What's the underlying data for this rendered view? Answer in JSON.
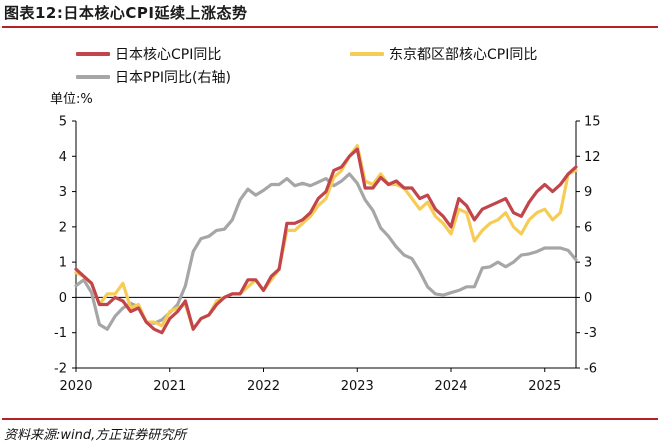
{
  "title": "图表12:日本核心CPI延续上涨态势",
  "source": "资料来源:wind,方正证券研究所",
  "unit_label": "单位:%",
  "colors": {
    "core_cpi": "#c1454a",
    "tokyo_cpi": "#f7cc55",
    "ppi": "#a6a6a6",
    "rule": "#b32025"
  },
  "chart_data": {
    "type": "line",
    "x_range": [
      "2020-01",
      "2025-05"
    ],
    "x_tick_labels": [
      "2020",
      "2021",
      "2022",
      "2023",
      "2024",
      "2025"
    ],
    "y_left_ticks": [
      -2,
      -1,
      0,
      1,
      2,
      3,
      4,
      5
    ],
    "y_right_ticks": [
      -6,
      -3,
      0,
      3,
      6,
      9,
      12,
      15
    ],
    "ylim_left": [
      -2,
      5
    ],
    "ylim_right": [
      -6,
      15
    ],
    "grid": false,
    "legend_position": "top",
    "series": [
      {
        "name": "日本核心CPI同比",
        "axis": "left",
        "color": "#c1454a",
        "x": [
          "2020-01",
          "2020-02",
          "2020-03",
          "2020-04",
          "2020-05",
          "2020-06",
          "2020-07",
          "2020-08",
          "2020-09",
          "2020-10",
          "2020-11",
          "2020-12",
          "2021-01",
          "2021-02",
          "2021-03",
          "2021-04",
          "2021-05",
          "2021-06",
          "2021-07",
          "2021-08",
          "2021-09",
          "2021-10",
          "2021-11",
          "2021-12",
          "2022-01",
          "2022-02",
          "2022-03",
          "2022-04",
          "2022-05",
          "2022-06",
          "2022-07",
          "2022-08",
          "2022-09",
          "2022-10",
          "2022-11",
          "2022-12",
          "2023-01",
          "2023-02",
          "2023-03",
          "2023-04",
          "2023-05",
          "2023-06",
          "2023-07",
          "2023-08",
          "2023-09",
          "2023-10",
          "2023-11",
          "2023-12",
          "2024-01",
          "2024-02",
          "2024-03",
          "2024-04",
          "2024-05",
          "2024-06",
          "2024-07",
          "2024-08",
          "2024-09",
          "2024-10",
          "2024-11",
          "2024-12",
          "2025-01",
          "2025-02",
          "2025-03",
          "2025-04",
          "2025-05"
        ],
        "values": [
          0.8,
          0.6,
          0.4,
          -0.2,
          -0.2,
          0.0,
          -0.1,
          -0.4,
          -0.3,
          -0.7,
          -0.9,
          -1.0,
          -0.6,
          -0.4,
          -0.1,
          -0.9,
          -0.6,
          -0.5,
          -0.2,
          0.0,
          0.1,
          0.1,
          0.5,
          0.5,
          0.2,
          0.6,
          0.8,
          2.1,
          2.1,
          2.2,
          2.4,
          2.8,
          3.0,
          3.6,
          3.7,
          4.0,
          4.2,
          3.1,
          3.1,
          3.4,
          3.2,
          3.3,
          3.1,
          3.1,
          2.8,
          2.9,
          2.5,
          2.3,
          2.0,
          2.8,
          2.6,
          2.2,
          2.5,
          2.6,
          2.7,
          2.8,
          2.4,
          2.3,
          2.7,
          3.0,
          3.2,
          3.0,
          3.2,
          3.5,
          3.7
        ]
      },
      {
        "name": "东京都区部核心CPI同比",
        "axis": "left",
        "color": "#f7cc55",
        "x": [
          "2020-01",
          "2020-02",
          "2020-03",
          "2020-04",
          "2020-05",
          "2020-06",
          "2020-07",
          "2020-08",
          "2020-09",
          "2020-10",
          "2020-11",
          "2020-12",
          "2021-01",
          "2021-02",
          "2021-03",
          "2021-04",
          "2021-05",
          "2021-06",
          "2021-07",
          "2021-08",
          "2021-09",
          "2021-10",
          "2021-11",
          "2021-12",
          "2022-01",
          "2022-02",
          "2022-03",
          "2022-04",
          "2022-05",
          "2022-06",
          "2022-07",
          "2022-08",
          "2022-09",
          "2022-10",
          "2022-11",
          "2022-12",
          "2023-01",
          "2023-02",
          "2023-03",
          "2023-04",
          "2023-05",
          "2023-06",
          "2023-07",
          "2023-08",
          "2023-09",
          "2023-10",
          "2023-11",
          "2023-12",
          "2024-01",
          "2024-02",
          "2024-03",
          "2024-04",
          "2024-05",
          "2024-06",
          "2024-07",
          "2024-08",
          "2024-09",
          "2024-10",
          "2024-11",
          "2024-12",
          "2025-01",
          "2025-02",
          "2025-03",
          "2025-04",
          "2025-05"
        ],
        "values": [
          0.7,
          0.6,
          0.4,
          -0.2,
          0.1,
          0.1,
          0.4,
          -0.3,
          -0.2,
          -0.7,
          -0.7,
          -0.8,
          -0.4,
          -0.3,
          -0.2,
          -0.9,
          -0.6,
          -0.5,
          -0.1,
          0.0,
          0.1,
          0.1,
          0.3,
          0.5,
          0.2,
          0.5,
          0.8,
          1.9,
          1.9,
          2.1,
          2.3,
          2.6,
          2.8,
          3.4,
          3.6,
          4.0,
          4.3,
          3.3,
          3.2,
          3.5,
          3.2,
          3.2,
          3.1,
          2.8,
          2.5,
          2.7,
          2.3,
          2.1,
          1.8,
          2.5,
          2.4,
          1.6,
          1.9,
          2.1,
          2.2,
          2.4,
          2.0,
          1.8,
          2.2,
          2.4,
          2.5,
          2.2,
          2.4,
          3.5,
          3.6
        ]
      },
      {
        "name": "日本PPI同比(右轴)",
        "axis": "right",
        "color": "#a6a6a6",
        "x": [
          "2020-01",
          "2020-02",
          "2020-03",
          "2020-04",
          "2020-05",
          "2020-06",
          "2020-07",
          "2020-08",
          "2020-09",
          "2020-10",
          "2020-11",
          "2020-12",
          "2021-01",
          "2021-02",
          "2021-03",
          "2021-04",
          "2021-05",
          "2021-06",
          "2021-07",
          "2021-08",
          "2021-09",
          "2021-10",
          "2021-11",
          "2021-12",
          "2022-01",
          "2022-02",
          "2022-03",
          "2022-04",
          "2022-05",
          "2022-06",
          "2022-07",
          "2022-08",
          "2022-09",
          "2022-10",
          "2022-11",
          "2022-12",
          "2023-01",
          "2023-02",
          "2023-03",
          "2023-04",
          "2023-05",
          "2023-06",
          "2023-07",
          "2023-08",
          "2023-09",
          "2023-10",
          "2023-11",
          "2023-12",
          "2024-01",
          "2024-02",
          "2024-03",
          "2024-04",
          "2024-05",
          "2024-06",
          "2024-07",
          "2024-08",
          "2024-09",
          "2024-10",
          "2024-11",
          "2024-12",
          "2025-01",
          "2025-02",
          "2025-03",
          "2025-04",
          "2025-05"
        ],
        "values": [
          1.0,
          1.5,
          0.4,
          -2.3,
          -2.7,
          -1.6,
          -0.9,
          -0.5,
          -0.8,
          -2.1,
          -2.2,
          -1.9,
          -1.3,
          -0.6,
          1.0,
          3.9,
          5.0,
          5.2,
          5.7,
          5.8,
          6.6,
          8.3,
          9.2,
          8.7,
          9.1,
          9.6,
          9.6,
          10.1,
          9.5,
          9.7,
          9.5,
          9.8,
          10.1,
          9.5,
          9.9,
          10.5,
          9.7,
          8.3,
          7.4,
          5.9,
          5.2,
          4.3,
          3.6,
          3.3,
          2.2,
          0.9,
          0.3,
          0.2,
          0.4,
          0.6,
          0.9,
          0.9,
          2.5,
          2.6,
          3.0,
          2.6,
          3.0,
          3.6,
          3.7,
          3.9,
          4.2,
          4.2,
          4.2,
          4.0,
          3.2
        ]
      }
    ]
  }
}
